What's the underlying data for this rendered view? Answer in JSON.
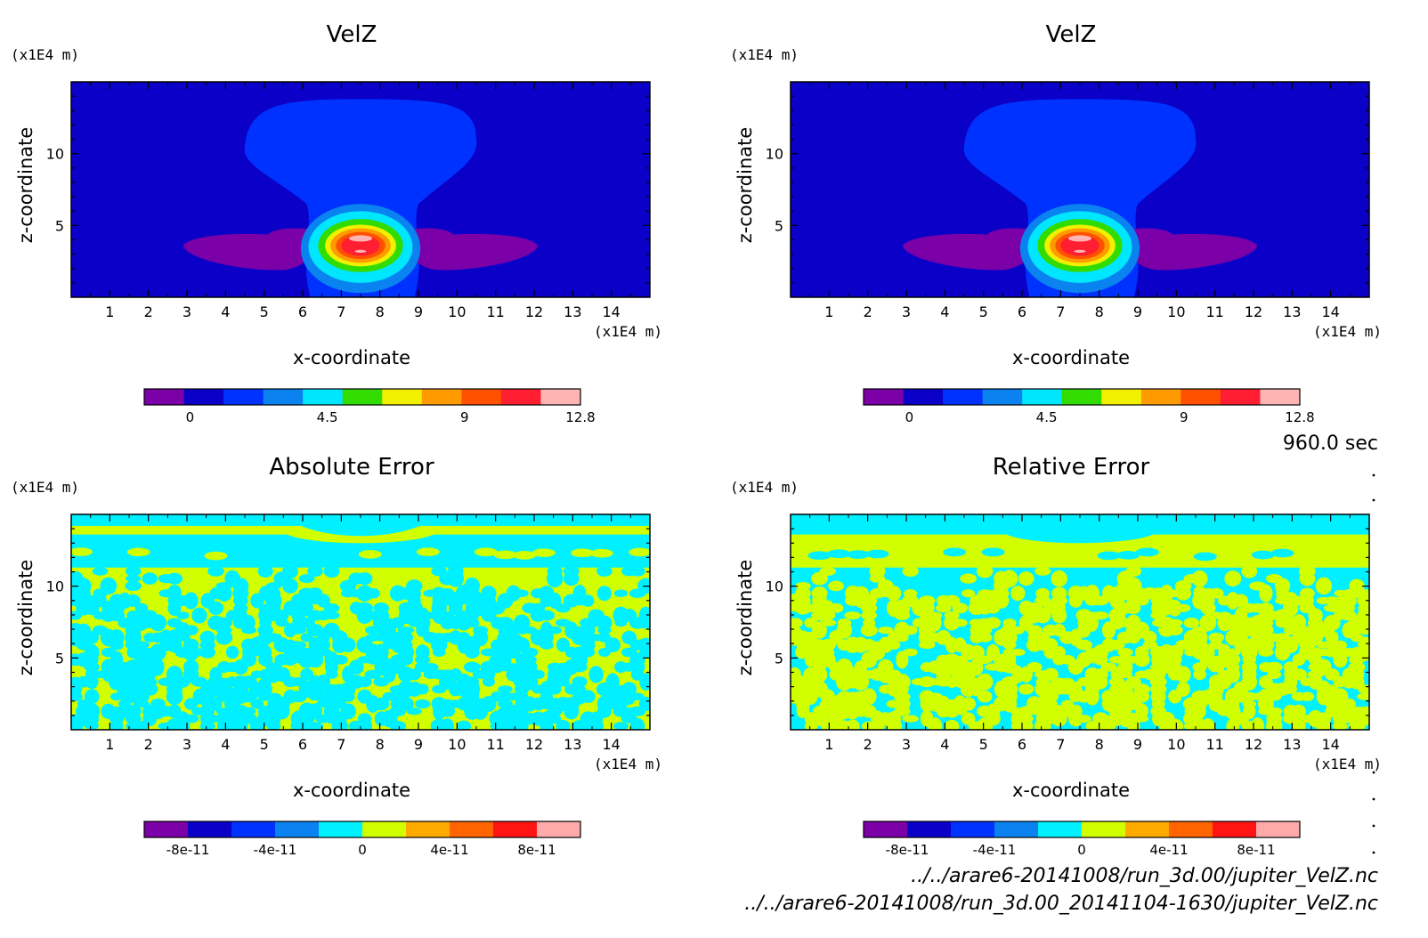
{
  "time_label": "960.0 sec",
  "files": [
    "../../arare6-20141008/run_3d.00/jupiter_VelZ.nc",
    "../../arare6-20141008/run_3d.00_20141104-1630/jupiter_VelZ.nc"
  ],
  "colors": {
    "velz_levels": [
      "#7b00a8",
      "#0a00c8",
      "#0032ff",
      "#0a82f0",
      "#00e6ff",
      "#32dc00",
      "#f0f000",
      "#ff9b00",
      "#ff5000",
      "#ff1e32",
      "#ffb4b4"
    ],
    "error_levels": [
      "#7b00a8",
      "#0a00c8",
      "#0032ff",
      "#0a82f0",
      "#00f0ff",
      "#d2ff00",
      "#ffaa00",
      "#ff6400",
      "#ff1414",
      "#ffaaaa"
    ]
  },
  "chart_data": [
    {
      "type": "heatmap",
      "title": "VelZ",
      "xlabel": "x-coordinate",
      "ylabel": "z-coordinate",
      "x_unit": "(x1E4 m)",
      "y_unit": "(x1E4 m)",
      "xlim": [
        0,
        15
      ],
      "ylim": [
        0,
        15
      ],
      "x_ticks": [
        "1",
        "2",
        "3",
        "4",
        "5",
        "6",
        "7",
        "8",
        "9",
        "10",
        "11",
        "12",
        "13",
        "14"
      ],
      "y_ticks": [
        "5",
        "10"
      ],
      "colorbar_ticks": [
        "0",
        "4.5",
        "9",
        "12.8"
      ],
      "colorbar_range": [
        -1.5,
        12.8
      ]
    },
    {
      "type": "heatmap",
      "title": "VelZ",
      "xlabel": "x-coordinate",
      "ylabel": "z-coordinate",
      "x_unit": "(x1E4 m)",
      "y_unit": "(x1E4 m)",
      "xlim": [
        0,
        15
      ],
      "ylim": [
        0,
        15
      ],
      "x_ticks": [
        "1",
        "2",
        "3",
        "4",
        "5",
        "6",
        "7",
        "8",
        "9",
        "10",
        "11",
        "12",
        "13",
        "14"
      ],
      "y_ticks": [
        "5",
        "10"
      ],
      "colorbar_ticks": [
        "0",
        "4.5",
        "9",
        "12.8"
      ],
      "colorbar_range": [
        -1.5,
        12.8
      ]
    },
    {
      "type": "heatmap",
      "title": "Absolute Error",
      "xlabel": "x-coordinate",
      "ylabel": "z-coordinate",
      "x_unit": "(x1E4 m)",
      "y_unit": "(x1E4 m)",
      "xlim": [
        0,
        15
      ],
      "ylim": [
        0,
        15
      ],
      "x_ticks": [
        "1",
        "2",
        "3",
        "4",
        "5",
        "6",
        "7",
        "8",
        "9",
        "10",
        "11",
        "12",
        "13",
        "14"
      ],
      "y_ticks": [
        "5",
        "10"
      ],
      "colorbar_ticks": [
        "-8e-11",
        "-4e-11",
        "0",
        "4e-11",
        "8e-11"
      ],
      "colorbar_range": [
        -1e-10,
        1e-10
      ]
    },
    {
      "type": "heatmap",
      "title": "Relative Error",
      "xlabel": "x-coordinate",
      "ylabel": "z-coordinate",
      "x_unit": "(x1E4 m)",
      "y_unit": "(x1E4 m)",
      "xlim": [
        0,
        15
      ],
      "ylim": [
        0,
        15
      ],
      "x_ticks": [
        "1",
        "2",
        "3",
        "4",
        "5",
        "6",
        "7",
        "8",
        "9",
        "10",
        "11",
        "12",
        "13",
        "14"
      ],
      "y_ticks": [
        "5",
        "10"
      ],
      "colorbar_ticks": [
        "-8e-11",
        "-4e-11",
        "0",
        "4e-11",
        "8e-11"
      ],
      "colorbar_range": [
        -1e-10,
        1e-10
      ]
    }
  ]
}
